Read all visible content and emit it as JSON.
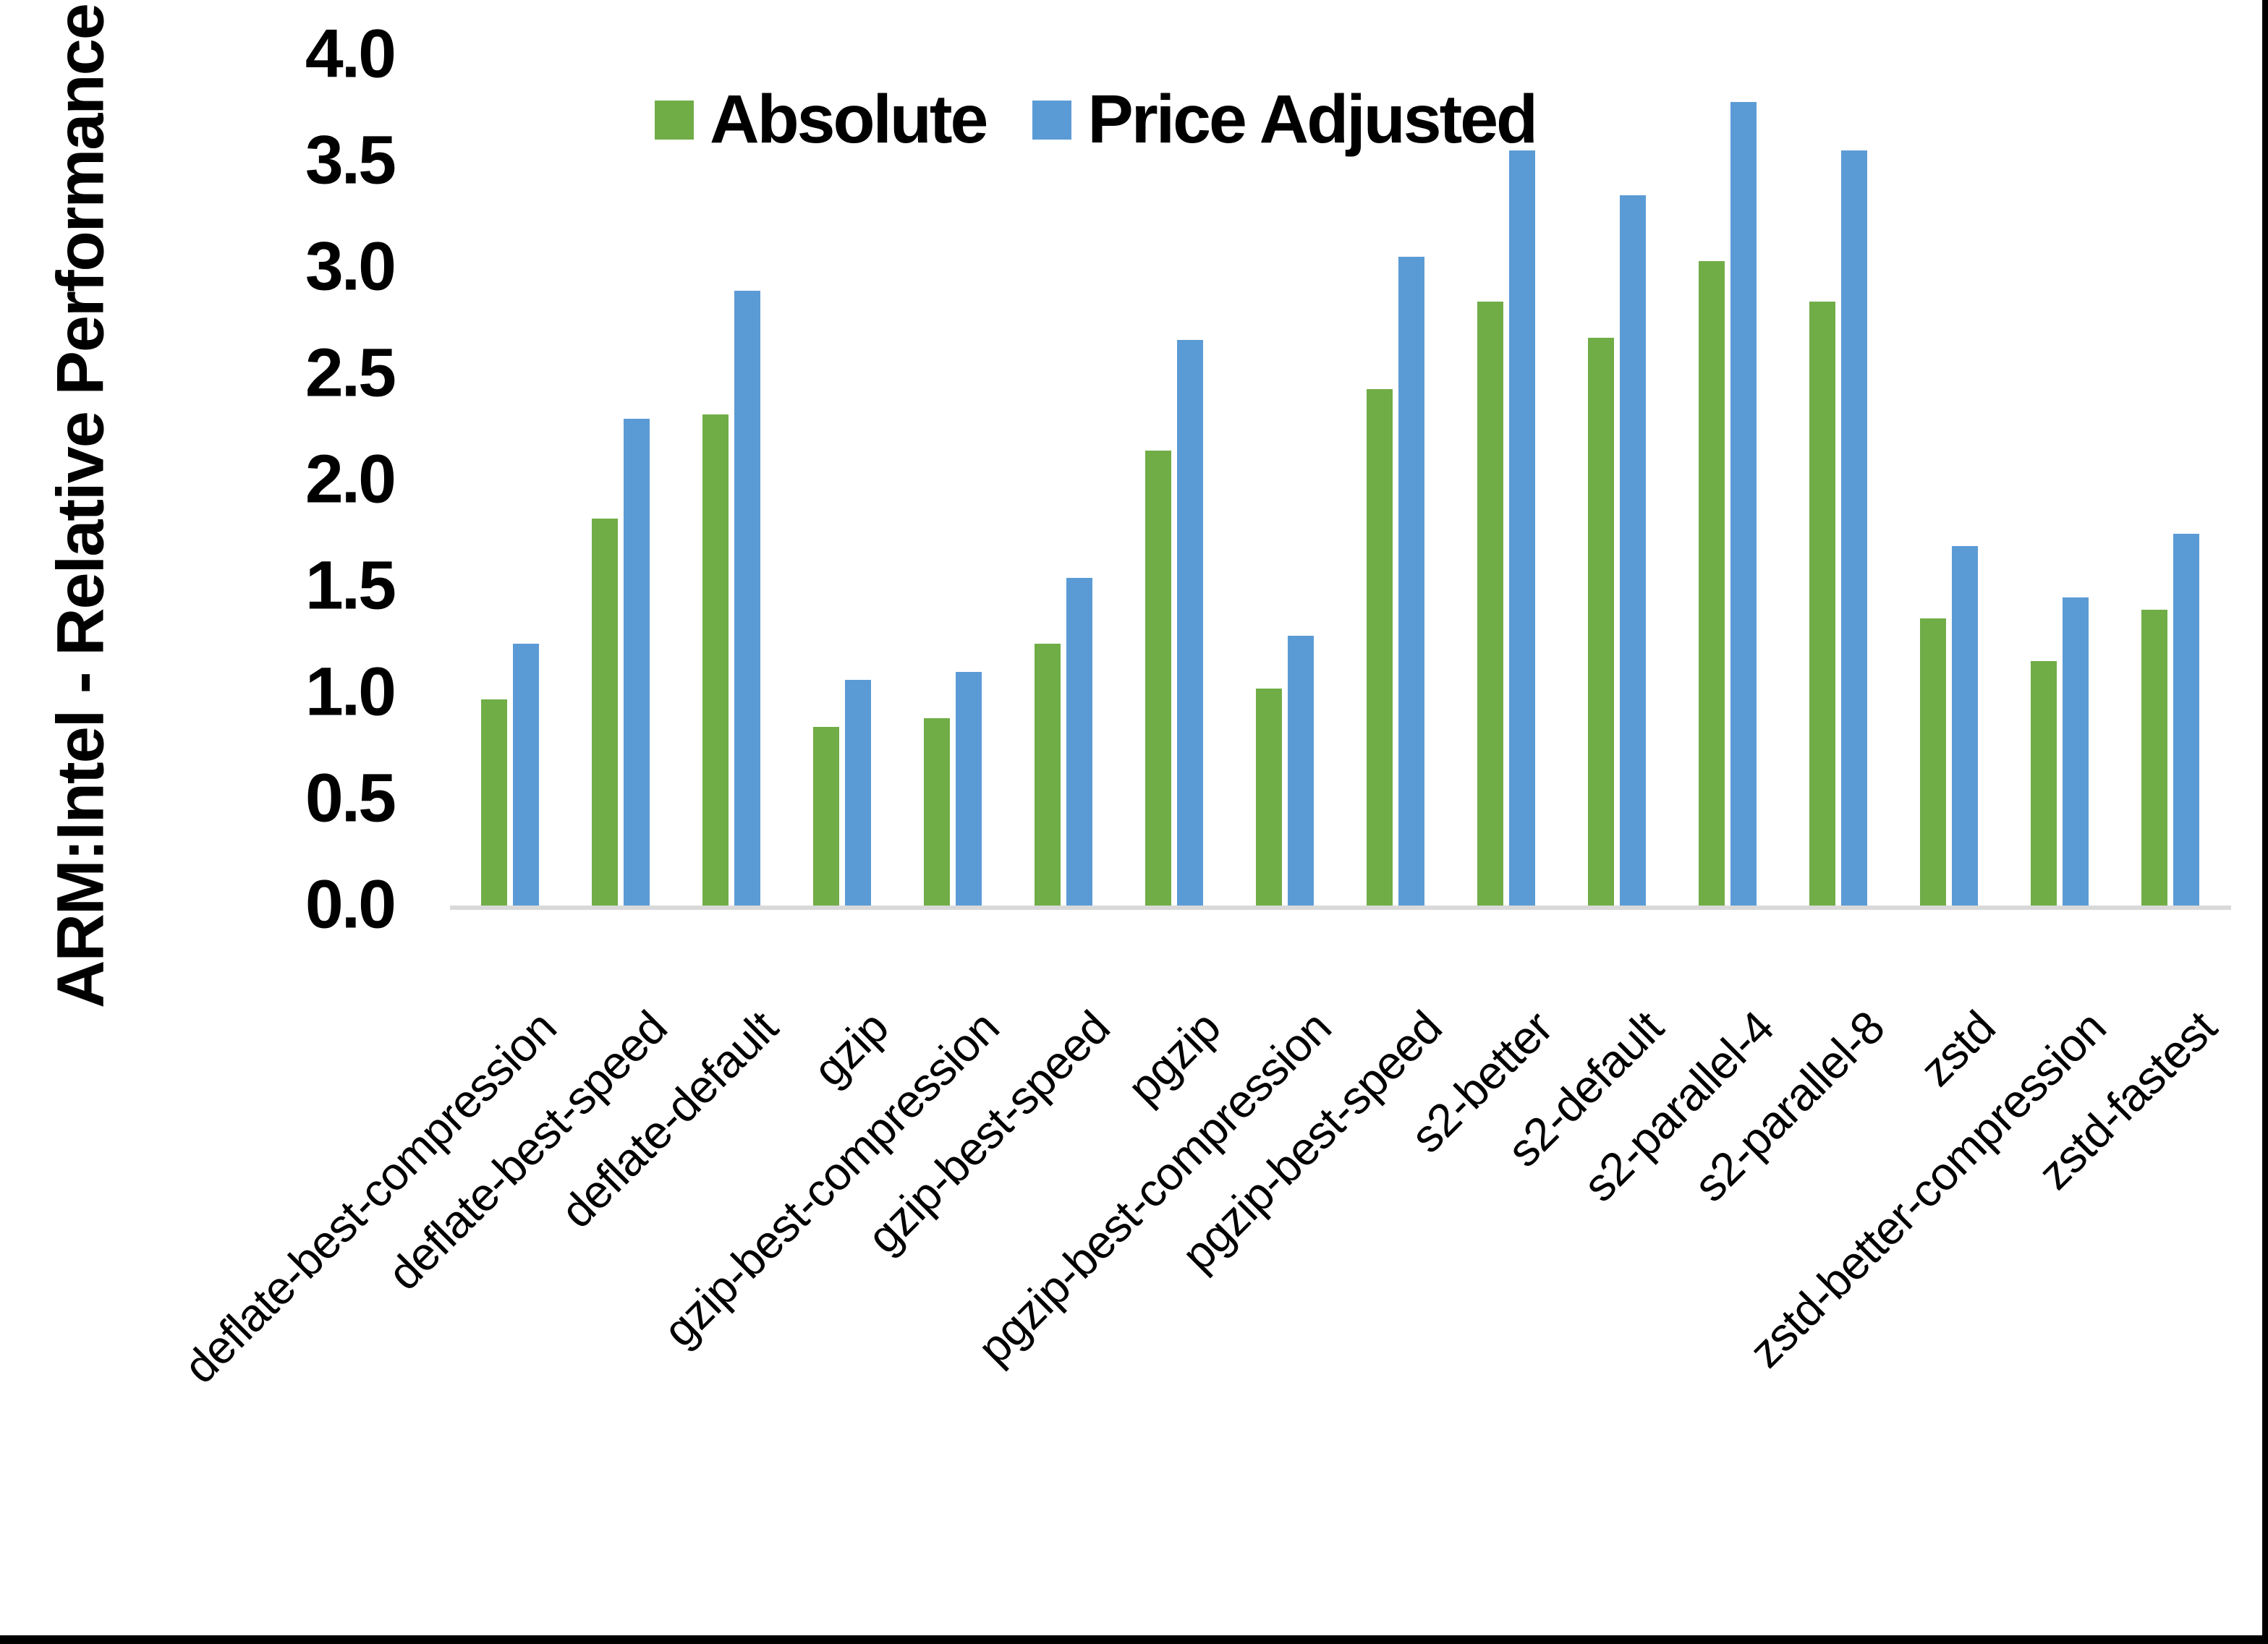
{
  "figure": {
    "y_axis_title": "ARM:Intel - Relative Performance",
    "y_ticks": [
      "4.0",
      "3.5",
      "3.0",
      "2.5",
      "2.0",
      "1.5",
      "1.0",
      "0.5",
      "0.0"
    ],
    "axis_line_color": "#d9d9d9",
    "background_color": "#ffffff"
  },
  "legend": {
    "position": "top-center",
    "items": [
      {
        "label": "Absolute",
        "color": "#70AD47"
      },
      {
        "label": "Price Adjusted",
        "color": "#5B9BD5"
      }
    ]
  },
  "chart_data": {
    "type": "bar",
    "title": "",
    "xlabel": "",
    "ylabel": "ARM:Intel - Relative Performance",
    "ylim": [
      0.0,
      4.0
    ],
    "ytick_step": 0.5,
    "grid": false,
    "legend_position": "top",
    "categories": [
      "deflate-best-compression",
      "deflate-best-speed",
      "deflate-default",
      "gzip",
      "gzip-best-compression",
      "gzip-best-speed",
      "pgzip",
      "pgzip-best-compression",
      "pgzip-best-speed",
      "s2-better",
      "s2-default",
      "s2-parallel-4",
      "s2-parallel-8",
      "zstd",
      "zstd-better-compression",
      "zstd-fastest"
    ],
    "series": [
      {
        "name": "Absolute",
        "color": "#70AD47",
        "values": [
          0.98,
          1.83,
          2.32,
          0.85,
          0.89,
          1.24,
          2.15,
          1.03,
          2.44,
          2.85,
          2.68,
          3.04,
          2.85,
          1.36,
          1.16,
          1.4
        ]
      },
      {
        "name": "Price Adjusted",
        "color": "#5B9BD5",
        "values": [
          1.24,
          2.3,
          2.9,
          1.07,
          1.11,
          1.55,
          2.67,
          1.28,
          3.06,
          3.56,
          3.35,
          3.79,
          3.56,
          1.7,
          1.46,
          1.76
        ]
      }
    ]
  }
}
